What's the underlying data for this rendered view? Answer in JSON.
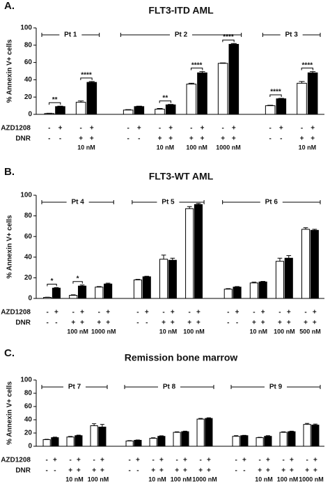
{
  "chart_data": [
    {
      "type": "bar",
      "panel": "A.",
      "title": "FLT3-ITD AML",
      "ylabel": "% Annexin V+ cells",
      "ylim": [
        0,
        100
      ],
      "yticks": [
        0,
        20,
        40,
        60,
        80,
        100
      ],
      "row_labels": [
        "AZD1208",
        "DNR"
      ],
      "groups": [
        {
          "label": "Pt 1",
          "count": 2
        },
        {
          "label": "Pt 2",
          "count": 4
        },
        {
          "label": "Pt 3",
          "count": 2
        }
      ],
      "categories": [
        null,
        "10 nM",
        null,
        "10 nM",
        "100 nM",
        "1000 nM",
        null,
        "10 nM"
      ],
      "dnr": [
        "-",
        "+",
        "-",
        "+",
        "+",
        "+",
        "-",
        "+"
      ],
      "series": [
        {
          "azd": "-",
          "color": "#ffffff",
          "values": [
            1,
            14,
            5,
            6,
            35,
            59,
            10,
            36
          ],
          "errors": [
            0.3,
            1.5,
            0.5,
            0.8,
            1,
            0.5,
            0.5,
            2
          ]
        },
        {
          "azd": "+",
          "color": "#000000",
          "values": [
            9,
            37,
            9,
            11,
            48,
            81,
            18,
            48
          ],
          "errors": [
            0.5,
            1,
            0.5,
            0.5,
            1.5,
            1,
            0.5,
            1.5
          ]
        }
      ],
      "annotations": [
        {
          "category": 0,
          "text": "**"
        },
        {
          "category": 1,
          "text": "****"
        },
        {
          "category": 3,
          "text": "**"
        },
        {
          "category": 4,
          "text": "****"
        },
        {
          "category": 5,
          "text": "****"
        },
        {
          "category": 6,
          "text": "****"
        },
        {
          "category": 7,
          "text": "****"
        }
      ]
    },
    {
      "type": "bar",
      "panel": "B.",
      "title": "FLT3-WT AML",
      "ylabel": "% Annexin V+ cells",
      "ylim": [
        0,
        100
      ],
      "yticks": [
        0,
        20,
        40,
        60,
        80,
        100
      ],
      "row_labels": [
        "AZD1208",
        "DNR"
      ],
      "groups": [
        {
          "label": "Pt 4",
          "count": 3
        },
        {
          "label": "Pt 5",
          "count": 3
        },
        {
          "label": "Pt 6",
          "count": 4
        }
      ],
      "categories": [
        null,
        "100 nM",
        "1000 nM",
        null,
        "10 nM",
        "100 nM",
        null,
        "10 nM",
        "100 nM",
        "500 nM"
      ],
      "dnr": [
        "-",
        "+",
        "+",
        "-",
        "+",
        "+",
        "-",
        "+",
        "+",
        "+"
      ],
      "series": [
        {
          "azd": "-",
          "color": "#ffffff",
          "values": [
            1,
            3,
            11,
            18,
            38,
            87,
            9,
            15,
            36,
            67
          ],
          "errors": [
            0.2,
            0.5,
            0.5,
            0.5,
            4,
            2,
            0.5,
            0.8,
            3,
            1.5
          ]
        },
        {
          "azd": "+",
          "color": "#000000",
          "values": [
            10,
            12,
            14,
            21,
            37,
            91,
            11,
            16,
            39,
            66
          ],
          "errors": [
            0.5,
            1,
            0.8,
            0.5,
            2,
            1,
            0.5,
            0.5,
            2.5,
            1
          ]
        }
      ],
      "annotations": [
        {
          "category": 0,
          "text": "*"
        },
        {
          "category": 1,
          "text": "*"
        }
      ]
    },
    {
      "type": "bar",
      "panel": "C.",
      "title": "Remission bone marrow",
      "ylabel": "% Annexin V+ cells",
      "ylim": [
        0,
        100
      ],
      "yticks": [
        0,
        20,
        40,
        60,
        80,
        100
      ],
      "row_labels": [
        "AZD1208",
        "DNR"
      ],
      "groups": [
        {
          "label": "Pt 7",
          "count": 3
        },
        {
          "label": "Pt 8",
          "count": 4
        },
        {
          "label": "Pt 9",
          "count": 4
        }
      ],
      "categories": [
        null,
        "10 nM",
        "100 nM",
        null,
        "10 nM",
        "100 nM",
        "1000 nM",
        null,
        "10 nM",
        "100 nM",
        "1000 nM"
      ],
      "dnr": [
        "-",
        "+",
        "+",
        "-",
        "+",
        "+",
        "+",
        "-",
        "+",
        "+",
        "+"
      ],
      "series": [
        {
          "azd": "-",
          "color": "#ffffff",
          "values": [
            10,
            14,
            31,
            8,
            12,
            21,
            41,
            15,
            13,
            21,
            33
          ],
          "errors": [
            0.5,
            0.8,
            3,
            0.5,
            0.8,
            0.8,
            1,
            1,
            0.5,
            0.8,
            1.5
          ]
        },
        {
          "azd": "+",
          "color": "#000000",
          "values": [
            13,
            16,
            29,
            9,
            15,
            22,
            42,
            16,
            15,
            22,
            32
          ],
          "errors": [
            0.8,
            0.8,
            4,
            0.5,
            0.8,
            0.8,
            1,
            0.5,
            1,
            0.8,
            1.5
          ]
        }
      ],
      "annotations": []
    }
  ]
}
